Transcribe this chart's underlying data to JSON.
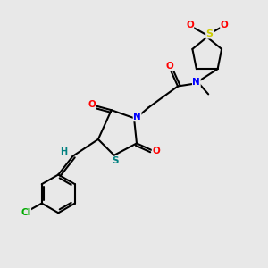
{
  "bg_color": "#e8e8e8",
  "bond_color": "#000000",
  "atom_colors": {
    "O": "#ff0000",
    "N": "#0000ff",
    "S_yellow": "#cccc00",
    "S_teal": "#008080",
    "Cl": "#00aa00",
    "H": "#008080"
  },
  "lw": 1.5
}
